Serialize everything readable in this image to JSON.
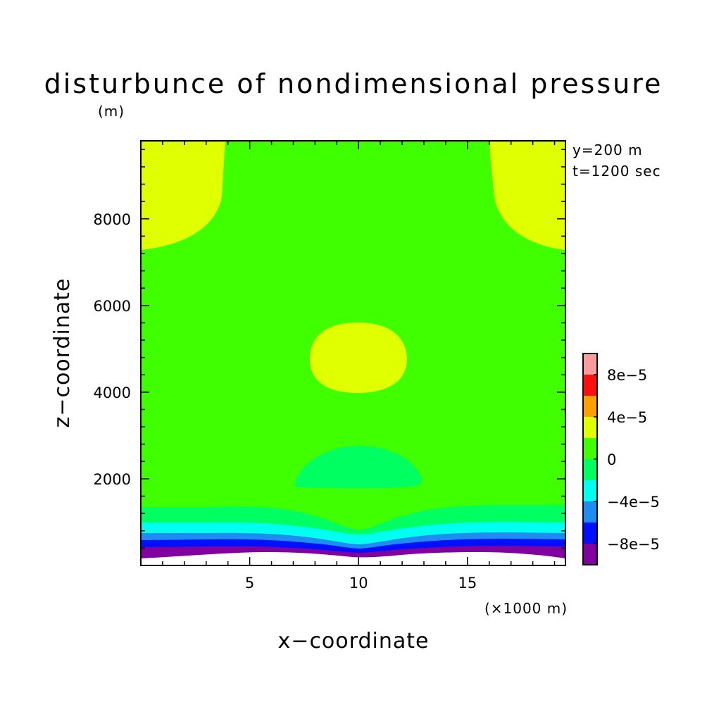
{
  "chart_data": {
    "type": "heatmap",
    "title": "disturbunce of nondimensional pressure",
    "xlabel": "x−coordinate",
    "ylabel": "z−coordinate",
    "x_unit": "(×1000 m)",
    "y_unit": "(m)",
    "xlim": [
      0,
      19.5
    ],
    "ylim": [
      0,
      9800
    ],
    "x_ticks": [
      5,
      10,
      15
    ],
    "x_tick_labels": [
      "5",
      "10",
      "15"
    ],
    "y_ticks": [
      2000,
      4000,
      6000,
      8000
    ],
    "y_tick_labels": [
      "2000",
      "4000",
      "6000",
      "8000"
    ],
    "annotations": [
      "y=200 m",
      "t=1200 sec"
    ],
    "colorbar": {
      "levels": [
        -0.0001,
        -8e-05,
        -6e-05,
        -4e-05,
        -2e-05,
        0,
        2e-05,
        4e-05,
        6e-05,
        8e-05,
        0.0001
      ],
      "colors": [
        "#8000a0",
        "#0010ff",
        "#1e8cf0",
        "#00ffee",
        "#00ff60",
        "#40ff00",
        "#e0ff00",
        "#ffa000",
        "#ff1010",
        "#ff9b9b"
      ],
      "tick_labels": [
        "−8e−5",
        "−4e−5",
        "0",
        "4e−5",
        "8e−5"
      ],
      "tick_values": [
        -8e-05,
        -4e-05,
        0,
        4e-05,
        8e-05
      ]
    },
    "regions": [
      {
        "level": "0 to 2e-5",
        "color": "#40ff00",
        "description": "background field"
      },
      {
        "level": "2e-5 to 4e-5",
        "x": [
          0,
          3.8
        ],
        "z": [
          7400,
          9800
        ]
      },
      {
        "level": "2e-5 to 4e-5",
        "x": [
          16.0,
          19.5
        ],
        "z": [
          7400,
          9800
        ]
      },
      {
        "level": "2e-5 to 4e-5",
        "x": [
          7.8,
          12.2
        ],
        "z": [
          4100,
          5700
        ]
      },
      {
        "level": "-2e-5 to 0",
        "x": [
          7.0,
          13.0
        ],
        "z": [
          1800,
          2800
        ]
      },
      {
        "level": "-2e-5 to 0",
        "x": [
          0,
          19.5
        ],
        "z": [
          900,
          1400
        ]
      },
      {
        "level": "-4e-5 to -2e-5",
        "x": [
          0,
          19.5
        ],
        "z": [
          700,
          1000
        ]
      },
      {
        "level": "-6e-5 to -4e-5",
        "x": [
          0,
          19.5
        ],
        "z": [
          550,
          780
        ]
      },
      {
        "level": "-8e-5 to -6e-5",
        "x": [
          0,
          19.5
        ],
        "z": [
          400,
          620
        ]
      },
      {
        "level": "-1e-4 to -8e-5",
        "x": [
          0,
          19.5
        ],
        "z": [
          180,
          460
        ]
      }
    ]
  }
}
